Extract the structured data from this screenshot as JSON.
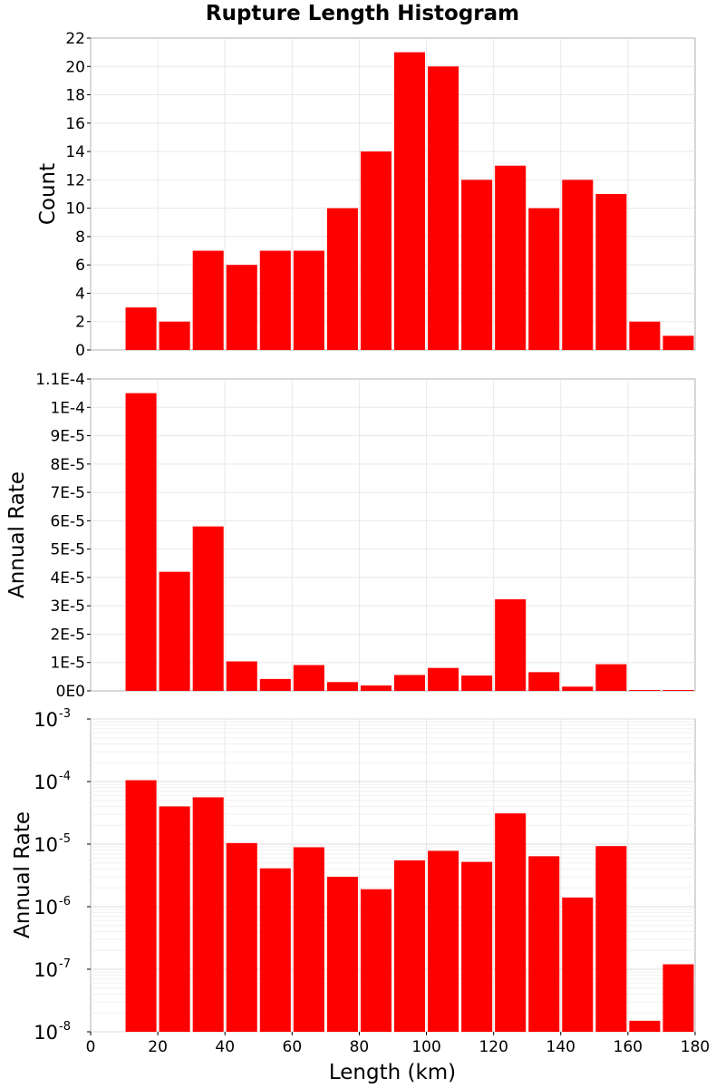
{
  "chart_data": [
    {
      "type": "bar",
      "title": "Rupture Length Histogram",
      "ylabel": "Count",
      "xlim": [
        0,
        180
      ],
      "ylim": [
        0,
        22
      ],
      "y_scale": "linear",
      "yticks": [
        "0",
        "2",
        "4",
        "6",
        "8",
        "10",
        "12",
        "14",
        "16",
        "18",
        "20",
        "22"
      ],
      "ytick_values": [
        0,
        2,
        4,
        6,
        8,
        10,
        12,
        14,
        16,
        18,
        20,
        22
      ],
      "bin_centers": [
        15,
        25,
        35,
        45,
        55,
        65,
        75,
        85,
        95,
        105,
        115,
        125,
        135,
        145,
        155,
        165,
        175
      ],
      "values": [
        3,
        2,
        7,
        6,
        7,
        7,
        10,
        14,
        21,
        20,
        12,
        13,
        10,
        12,
        11,
        2,
        1
      ],
      "bar_color": "#ff0000",
      "grid": true
    },
    {
      "type": "bar",
      "ylabel": "Annual Rate",
      "xlim": [
        0,
        180
      ],
      "ylim": [
        0,
        0.00011
      ],
      "y_scale": "linear",
      "yticks": [
        "0E0",
        "1E-5",
        "2E-5",
        "3E-5",
        "4E-5",
        "5E-5",
        "6E-5",
        "7E-5",
        "8E-5",
        "9E-5",
        "1E-4",
        "1.1E-4"
      ],
      "ytick_values": [
        0,
        1e-05,
        2e-05,
        3e-05,
        4e-05,
        5e-05,
        6e-05,
        7e-05,
        8e-05,
        9e-05,
        0.0001,
        0.00011
      ],
      "bin_centers": [
        15,
        25,
        35,
        45,
        55,
        65,
        75,
        85,
        95,
        105,
        115,
        125,
        135,
        145,
        155,
        165,
        175
      ],
      "values": [
        0.000105,
        4.2e-05,
        5.8e-05,
        1.04e-05,
        4.2e-06,
        9.1e-06,
        3.1e-06,
        1.9e-06,
        5.6e-06,
        8.1e-06,
        5.4e-06,
        3.23e-05,
        6.6e-06,
        1.5e-06,
        9.4e-06,
        1.5e-08,
        1.2e-07
      ],
      "bar_color": "#ff0000",
      "grid": true
    },
    {
      "type": "bar",
      "ylabel": "Annual Rate",
      "xlabel": "Length (km)",
      "xlim": [
        0,
        180
      ],
      "xticks": [
        "0",
        "20",
        "40",
        "60",
        "80",
        "100",
        "120",
        "140",
        "160",
        "180"
      ],
      "xtick_values": [
        0,
        20,
        40,
        60,
        80,
        100,
        120,
        140,
        160,
        180
      ],
      "ylim": [
        1e-08,
        0.001
      ],
      "y_scale": "log",
      "ytick_base": "10",
      "ytick_exponents": [
        "-8",
        "-7",
        "-6",
        "-5",
        "-4",
        "-3"
      ],
      "bin_centers": [
        15,
        25,
        35,
        45,
        55,
        65,
        75,
        85,
        95,
        105,
        115,
        125,
        135,
        145,
        155,
        165,
        175
      ],
      "values": [
        0.000105,
        4e-05,
        5.6e-05,
        1.04e-05,
        4.1e-06,
        8.9e-06,
        3e-06,
        1.9e-06,
        5.5e-06,
        7.8e-06,
        5.2e-06,
        3.1e-05,
        6.4e-06,
        1.4e-06,
        9.3e-06,
        1.5e-08,
        1.2e-07
      ],
      "bar_color": "#ff0000",
      "grid": true
    }
  ]
}
